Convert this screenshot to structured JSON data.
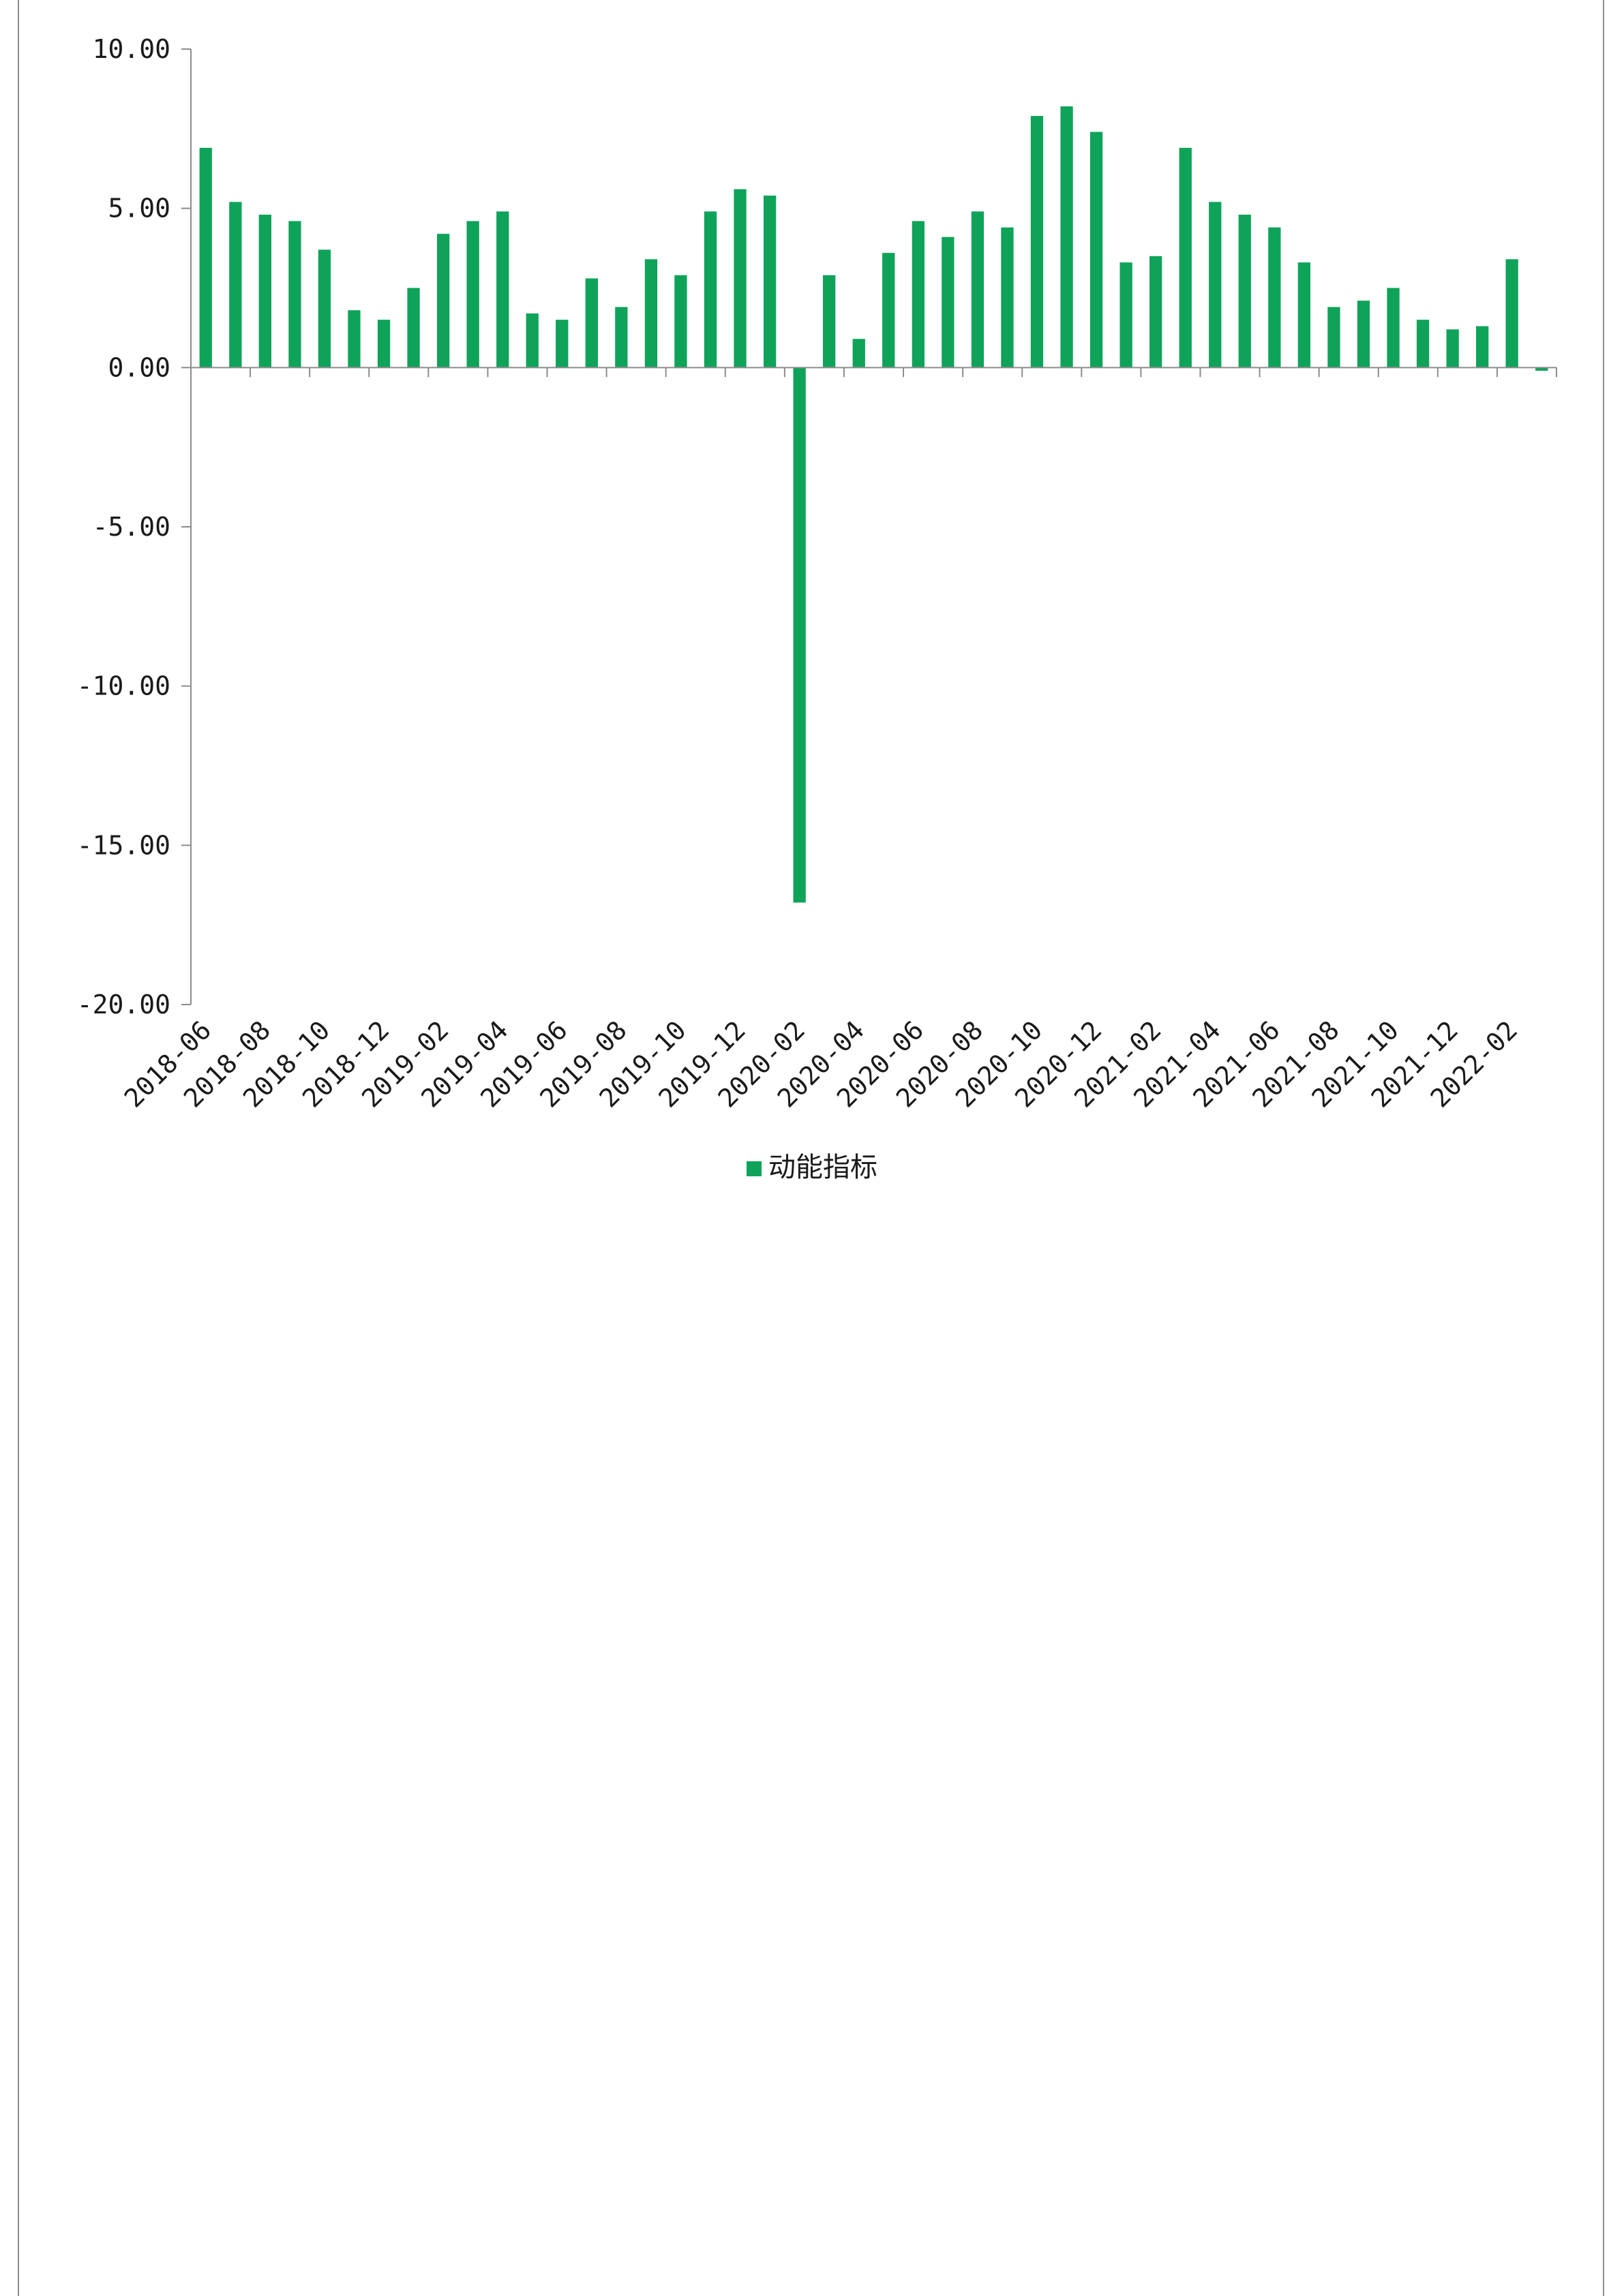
{
  "chart_data": {
    "type": "bar",
    "categories": [
      "2018-06",
      "2018-07",
      "2018-08",
      "2018-09",
      "2018-10",
      "2018-11",
      "2018-12",
      "2019-01",
      "2019-02",
      "2019-03",
      "2019-04",
      "2019-05",
      "2019-06",
      "2019-07",
      "2019-08",
      "2019-09",
      "2019-10",
      "2019-11",
      "2019-12",
      "2020-01",
      "2020-02",
      "2020-03",
      "2020-04",
      "2020-05",
      "2020-06",
      "2020-07",
      "2020-08",
      "2020-09",
      "2020-10",
      "2020-11",
      "2020-12",
      "2021-01",
      "2021-02",
      "2021-03",
      "2021-04",
      "2021-05",
      "2021-06",
      "2021-07",
      "2021-08",
      "2021-09",
      "2021-10",
      "2021-11",
      "2021-12",
      "2022-01",
      "2022-02",
      "2022-03"
    ],
    "x_tick_labels": [
      "2018-06",
      "2018-08",
      "2018-10",
      "2018-12",
      "2019-02",
      "2019-04",
      "2019-06",
      "2019-08",
      "2019-10",
      "2019-12",
      "2020-02",
      "2020-04",
      "2020-06",
      "2020-08",
      "2020-10",
      "2020-12",
      "2021-02",
      "2021-04",
      "2021-06",
      "2021-08",
      "2021-10",
      "2021-12",
      "2022-02"
    ],
    "series": [
      {
        "name": "动能指标",
        "color": "#0fa35a",
        "values": [
          6.9,
          5.2,
          4.8,
          4.6,
          3.7,
          1.8,
          1.5,
          2.5,
          4.2,
          4.6,
          4.9,
          1.7,
          1.5,
          2.8,
          1.9,
          3.4,
          2.9,
          4.9,
          5.6,
          5.4,
          -16.8,
          2.9,
          0.9,
          3.6,
          4.6,
          4.1,
          4.9,
          4.4,
          7.9,
          8.2,
          7.4,
          3.3,
          3.5,
          6.9,
          5.2,
          4.8,
          4.4,
          3.3,
          1.9,
          2.1,
          2.5,
          1.5,
          1.2,
          1.3,
          3.4,
          -0.1
        ]
      }
    ],
    "y_tick_labels": [
      "10.00",
      "5.00",
      "0.00",
      "-5.00",
      "-10.00",
      "-15.00",
      "-20.00"
    ],
    "ylim": [
      -20,
      10
    ],
    "legend_position": "bottom",
    "grid": false
  }
}
